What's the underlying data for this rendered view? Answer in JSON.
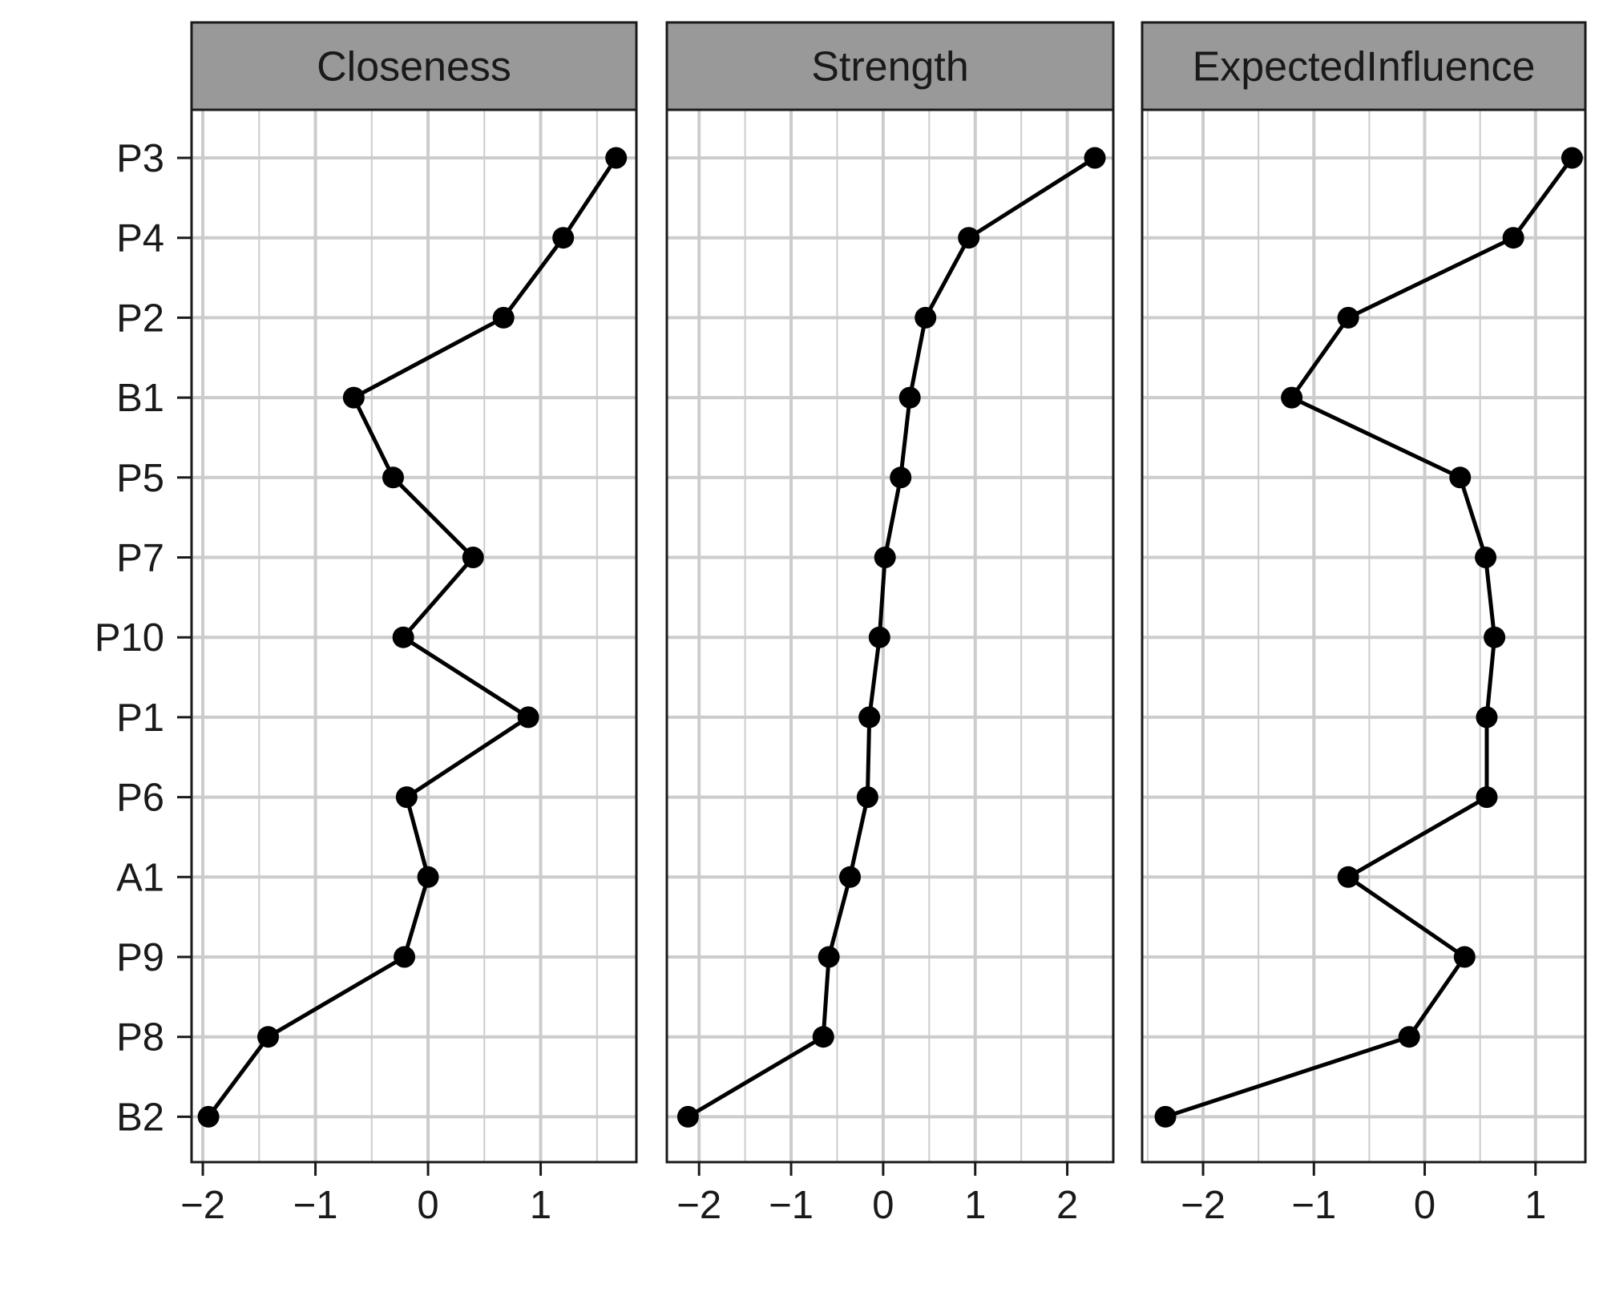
{
  "chart_data": {
    "type": "line",
    "layout": "facet",
    "categories": [
      "P3",
      "P4",
      "P2",
      "B1",
      "P5",
      "P7",
      "P10",
      "P1",
      "P6",
      "A1",
      "P9",
      "P8",
      "B2"
    ],
    "panels": [
      {
        "title": "Closeness",
        "xticks": [
          "−2",
          "−1",
          "0",
          "1"
        ],
        "xtick_values": [
          -2,
          -1,
          0,
          1
        ],
        "xlim": [
          -2.1,
          1.85
        ],
        "values": [
          1.67,
          1.2,
          0.67,
          -0.66,
          -0.31,
          0.4,
          -0.22,
          0.89,
          -0.19,
          0.0,
          -0.21,
          -1.42,
          -1.95
        ]
      },
      {
        "title": "Strength",
        "xticks": [
          "−2",
          "−1",
          "0",
          "1",
          "2"
        ],
        "xtick_values": [
          -2,
          -1,
          0,
          1,
          2
        ],
        "xlim": [
          -2.35,
          2.5
        ],
        "values": [
          2.3,
          0.93,
          0.46,
          0.29,
          0.19,
          0.02,
          -0.04,
          -0.15,
          -0.17,
          -0.36,
          -0.59,
          -0.65,
          -2.12
        ]
      },
      {
        "title": "ExpectedInfluence",
        "xticks": [
          "−2",
          "−1",
          "0",
          "1"
        ],
        "xtick_values": [
          -2,
          -1,
          0,
          1
        ],
        "xlim": [
          -2.55,
          1.45
        ],
        "values": [
          1.33,
          0.8,
          -0.69,
          -1.2,
          0.32,
          0.55,
          0.63,
          0.56,
          0.56,
          -0.69,
          0.36,
          -0.14,
          -2.34
        ]
      }
    ],
    "grid": true,
    "legend": "none"
  },
  "colors": {
    "strip_fill": "#999999",
    "border": "#1a1a1a",
    "grid": "#cccccc",
    "line": "#000000"
  }
}
